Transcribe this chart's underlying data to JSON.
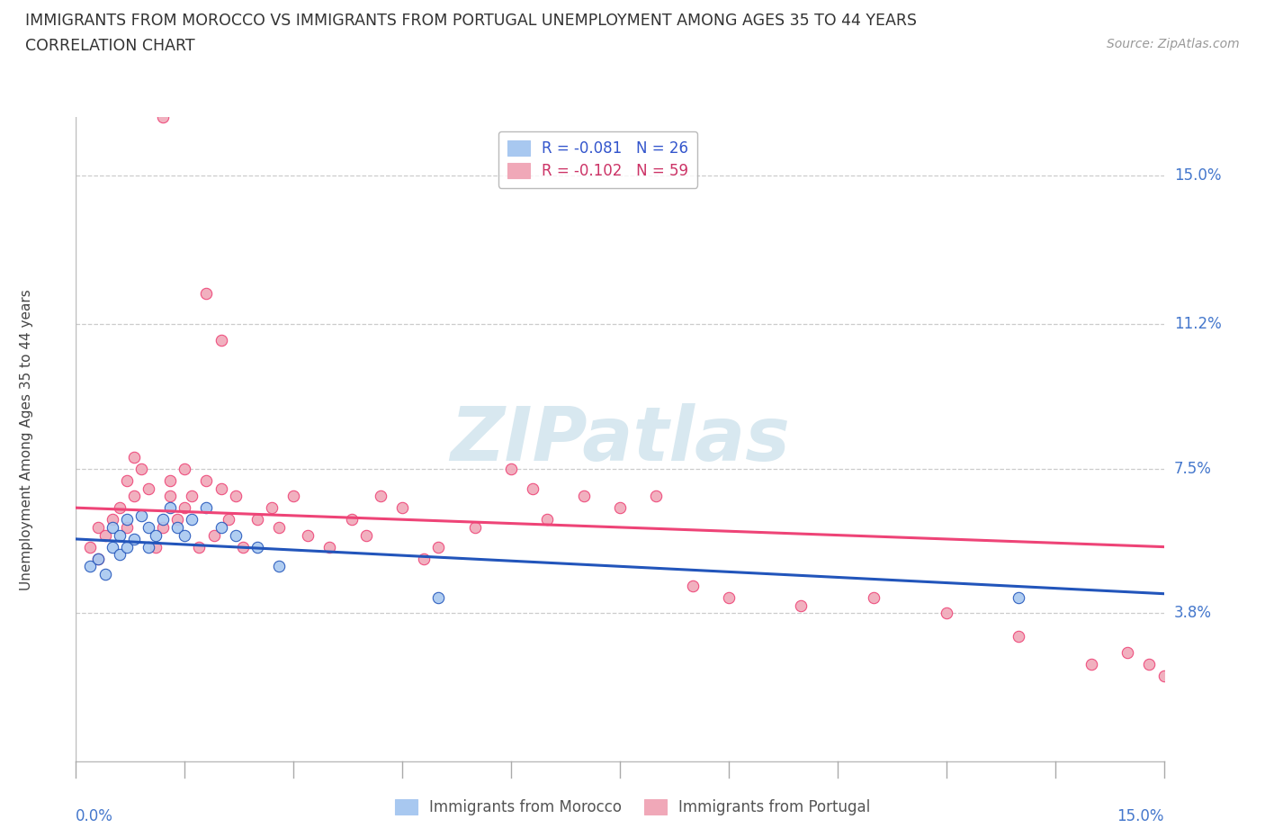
{
  "title_line1": "IMMIGRANTS FROM MOROCCO VS IMMIGRANTS FROM PORTUGAL UNEMPLOYMENT AMONG AGES 35 TO 44 YEARS",
  "title_line2": "CORRELATION CHART",
  "source_text": "Source: ZipAtlas.com",
  "ylabel": "Unemployment Among Ages 35 to 44 years",
  "ytick_values": [
    0.15,
    0.112,
    0.075,
    0.038
  ],
  "ytick_labels": [
    "15.0%",
    "11.2%",
    "7.5%",
    "3.8%"
  ],
  "xlim": [
    0.0,
    0.15
  ],
  "ylim": [
    0.0,
    0.165
  ],
  "morocco_color": "#a8c8f0",
  "portugal_color": "#f0a8b8",
  "morocco_line_color": "#2255bb",
  "portugal_line_color": "#ee4477",
  "morocco_r": "-0.081",
  "morocco_n": "26",
  "portugal_r": "-0.102",
  "portugal_n": "59",
  "morocco_x": [
    0.002,
    0.003,
    0.004,
    0.005,
    0.005,
    0.006,
    0.006,
    0.007,
    0.007,
    0.008,
    0.009,
    0.01,
    0.01,
    0.011,
    0.012,
    0.013,
    0.014,
    0.015,
    0.016,
    0.018,
    0.02,
    0.022,
    0.025,
    0.028,
    0.05,
    0.13
  ],
  "morocco_y": [
    0.05,
    0.052,
    0.048,
    0.06,
    0.055,
    0.058,
    0.053,
    0.062,
    0.055,
    0.057,
    0.063,
    0.06,
    0.055,
    0.058,
    0.062,
    0.065,
    0.06,
    0.058,
    0.062,
    0.065,
    0.06,
    0.058,
    0.055,
    0.05,
    0.042,
    0.042
  ],
  "portugal_x": [
    0.002,
    0.003,
    0.003,
    0.004,
    0.005,
    0.006,
    0.007,
    0.007,
    0.008,
    0.008,
    0.009,
    0.01,
    0.011,
    0.012,
    0.013,
    0.013,
    0.014,
    0.015,
    0.015,
    0.016,
    0.017,
    0.018,
    0.019,
    0.02,
    0.021,
    0.022,
    0.023,
    0.025,
    0.027,
    0.028,
    0.03,
    0.032,
    0.035,
    0.038,
    0.04,
    0.042,
    0.045,
    0.048,
    0.05,
    0.055,
    0.06,
    0.063,
    0.065,
    0.07,
    0.075,
    0.08,
    0.085,
    0.09,
    0.1,
    0.11,
    0.12,
    0.13,
    0.14,
    0.145,
    0.148,
    0.15,
    0.018,
    0.02,
    0.012
  ],
  "portugal_y": [
    0.055,
    0.06,
    0.052,
    0.058,
    0.062,
    0.065,
    0.072,
    0.06,
    0.078,
    0.068,
    0.075,
    0.07,
    0.055,
    0.06,
    0.068,
    0.072,
    0.062,
    0.075,
    0.065,
    0.068,
    0.055,
    0.072,
    0.058,
    0.07,
    0.062,
    0.068,
    0.055,
    0.062,
    0.065,
    0.06,
    0.068,
    0.058,
    0.055,
    0.062,
    0.058,
    0.068,
    0.065,
    0.052,
    0.055,
    0.06,
    0.075,
    0.07,
    0.062,
    0.068,
    0.065,
    0.068,
    0.045,
    0.042,
    0.04,
    0.042,
    0.038,
    0.032,
    0.025,
    0.028,
    0.025,
    0.022,
    0.12,
    0.108,
    0.165
  ]
}
